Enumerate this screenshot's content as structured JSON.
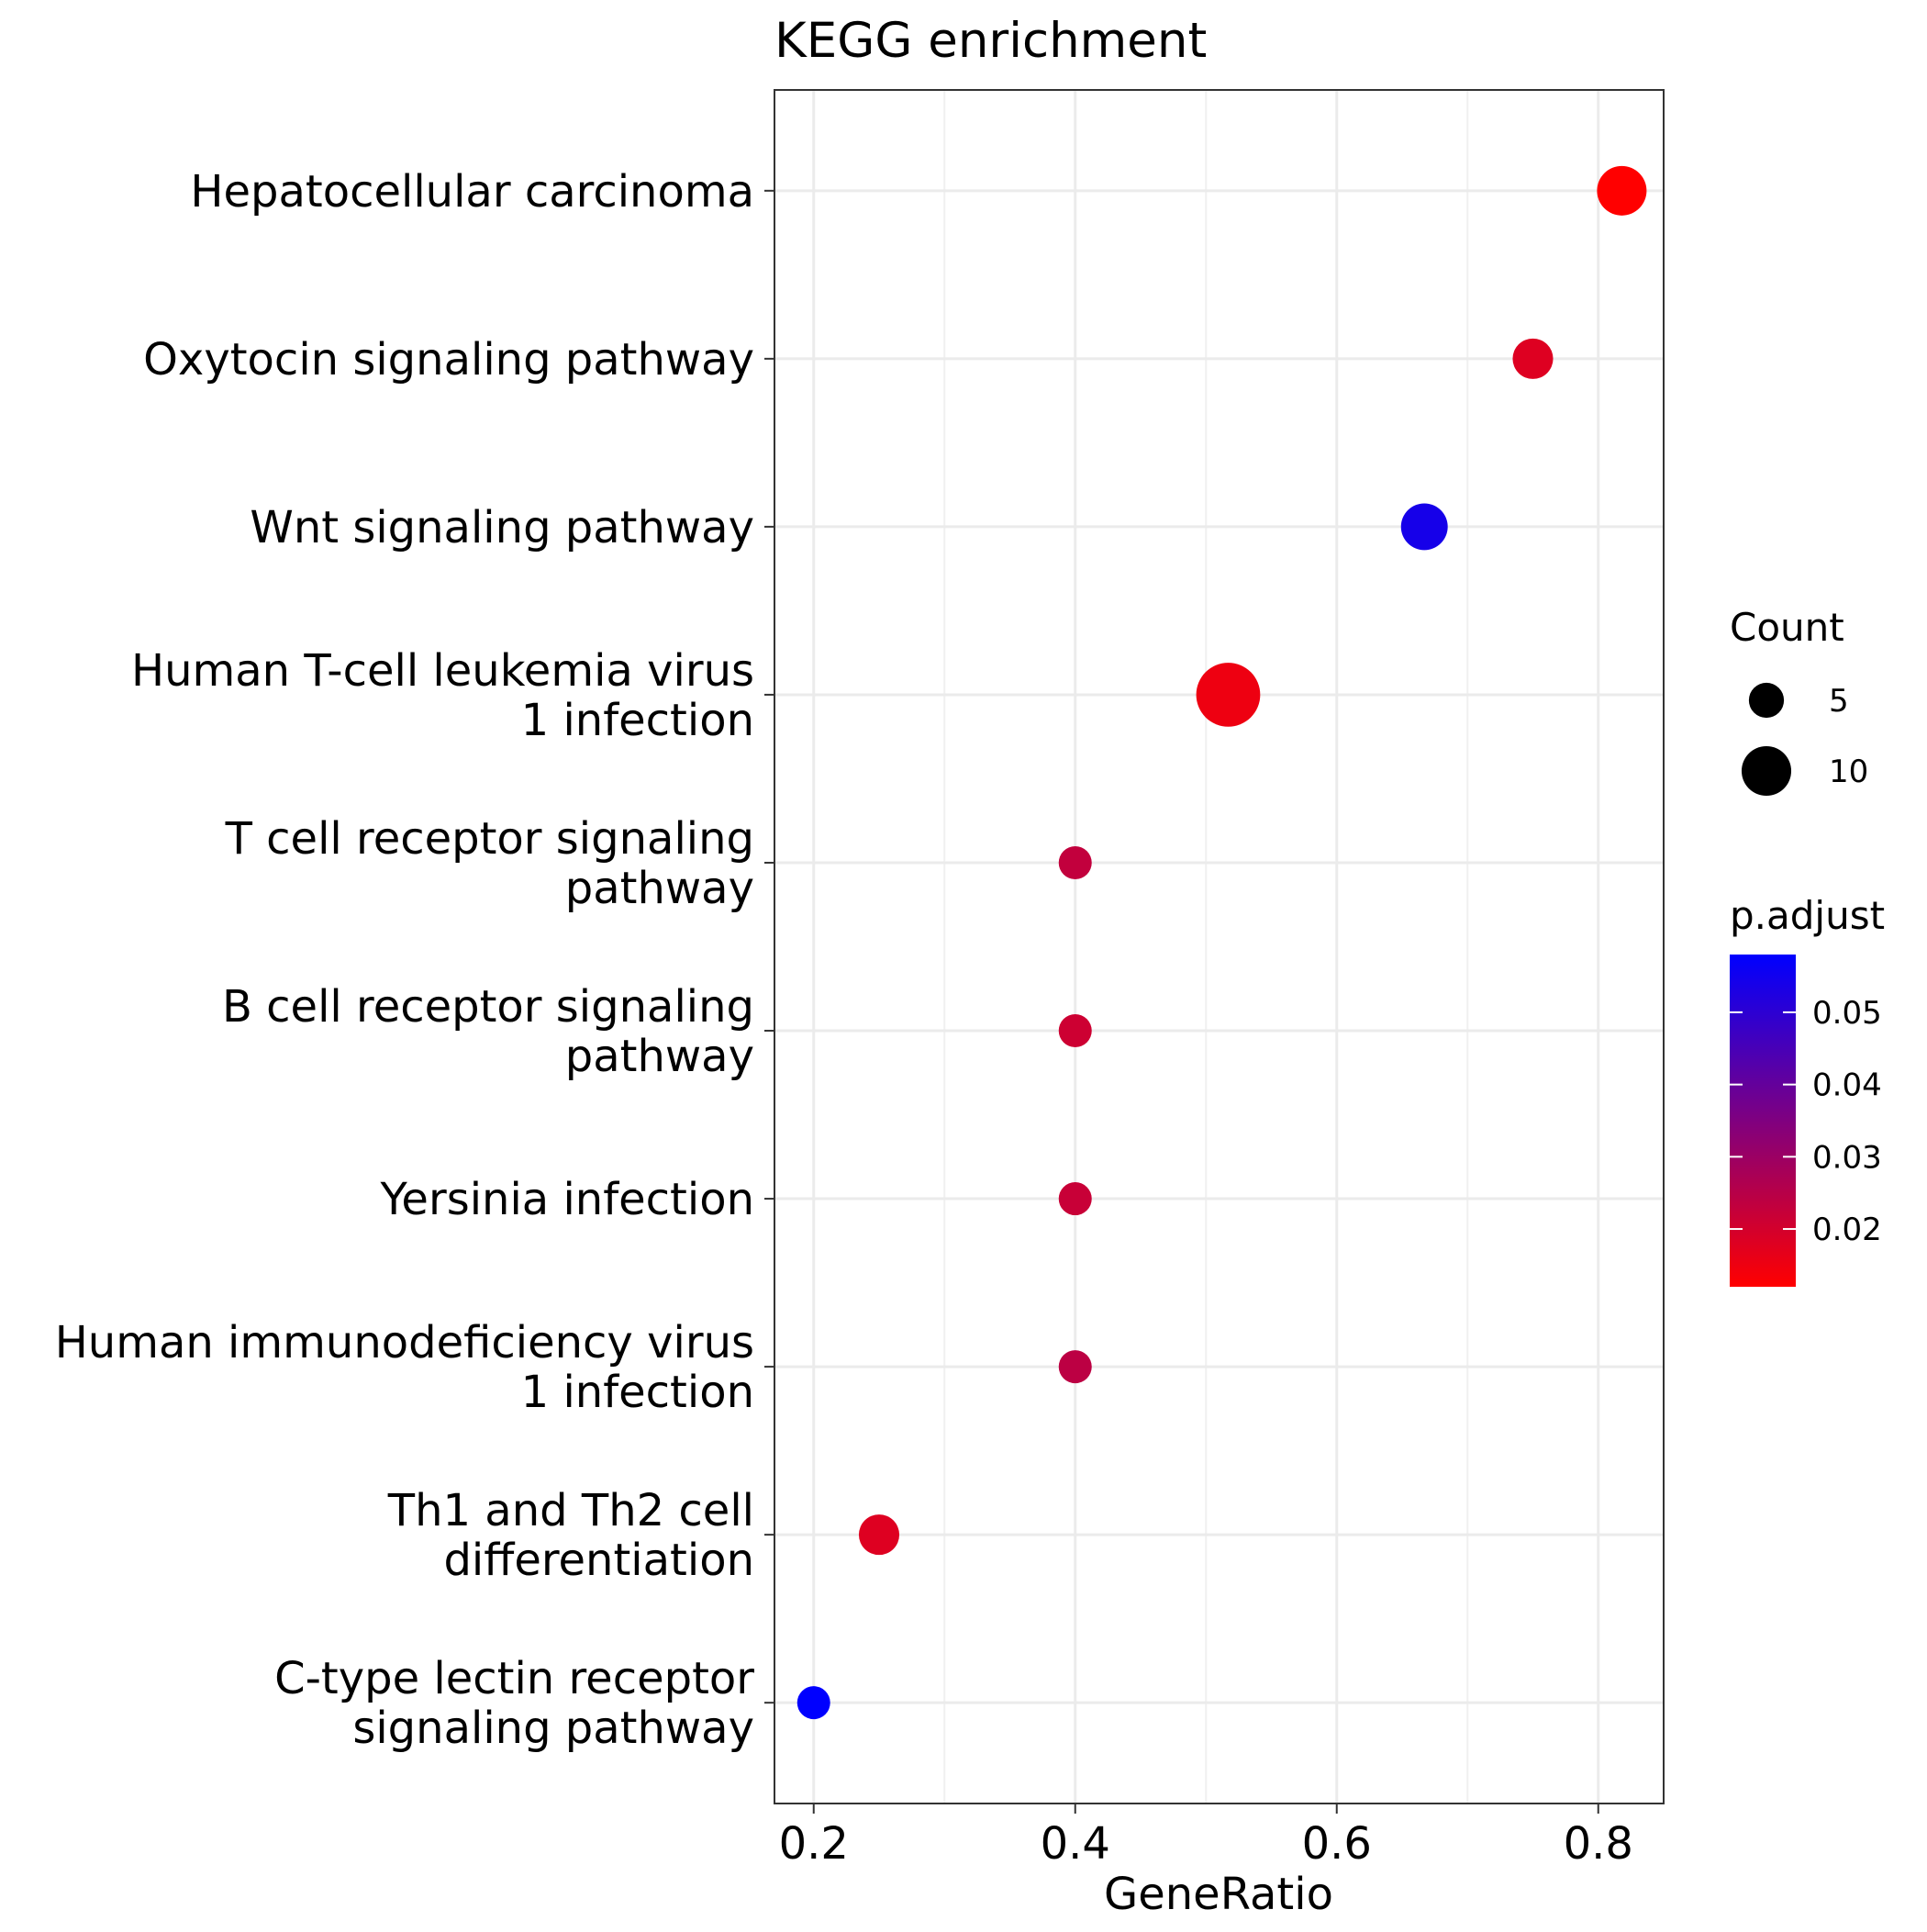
{
  "chart_data": {
    "type": "scatter",
    "title": "KEGG enrichment",
    "xlabel": "GeneRatio",
    "ylabel": "",
    "xlim": [
      0.17,
      0.85
    ],
    "xticks": [
      0.2,
      0.4,
      0.6,
      0.8
    ],
    "xtick_labels": [
      "0.2",
      "0.4",
      "0.6",
      "0.8"
    ],
    "grid": true,
    "legend_position": "right",
    "categories": [
      [
        "Hepatocellular carcinoma"
      ],
      [
        "Oxytocin signaling pathway"
      ],
      [
        "Wnt signaling pathway"
      ],
      [
        "Human T-cell leukemia virus",
        "1 infection"
      ],
      [
        "T cell receptor signaling",
        "pathway"
      ],
      [
        "B cell receptor signaling",
        "pathway"
      ],
      [
        "Yersinia infection"
      ],
      [
        "Human immunodeficiency virus",
        "1 infection"
      ],
      [
        "Th1 and Th2 cell",
        "differentiation"
      ],
      [
        "C-type lectin receptor",
        "signaling pathway"
      ]
    ],
    "points": [
      {
        "x": 0.818,
        "count": 9,
        "p_adjust": 0.012
      },
      {
        "x": 0.75,
        "count": 6,
        "p_adjust": 0.018
      },
      {
        "x": 0.667,
        "count": 8,
        "p_adjust": 0.054
      },
      {
        "x": 0.517,
        "count": 15,
        "p_adjust": 0.015
      },
      {
        "x": 0.4,
        "count": 4,
        "p_adjust": 0.023
      },
      {
        "x": 0.4,
        "count": 4,
        "p_adjust": 0.021
      },
      {
        "x": 0.4,
        "count": 4,
        "p_adjust": 0.022
      },
      {
        "x": 0.4,
        "count": 4,
        "p_adjust": 0.024
      },
      {
        "x": 0.25,
        "count": 6,
        "p_adjust": 0.018
      },
      {
        "x": 0.2,
        "count": 4,
        "p_adjust": 0.058
      }
    ],
    "size_legend": {
      "title": "Count",
      "entries": [
        {
          "label": "5",
          "value": 5
        },
        {
          "label": "10",
          "value": 10
        }
      ]
    },
    "color_legend": {
      "title": "p.adjust",
      "low_color": "#FF0000",
      "high_color": "#0000FF",
      "range": [
        0.012,
        0.058
      ],
      "ticks": [
        {
          "label": "0.02",
          "value": 0.02
        },
        {
          "label": "0.03",
          "value": 0.03
        },
        {
          "label": "0.04",
          "value": 0.04
        },
        {
          "label": "0.05",
          "value": 0.05
        }
      ]
    }
  }
}
